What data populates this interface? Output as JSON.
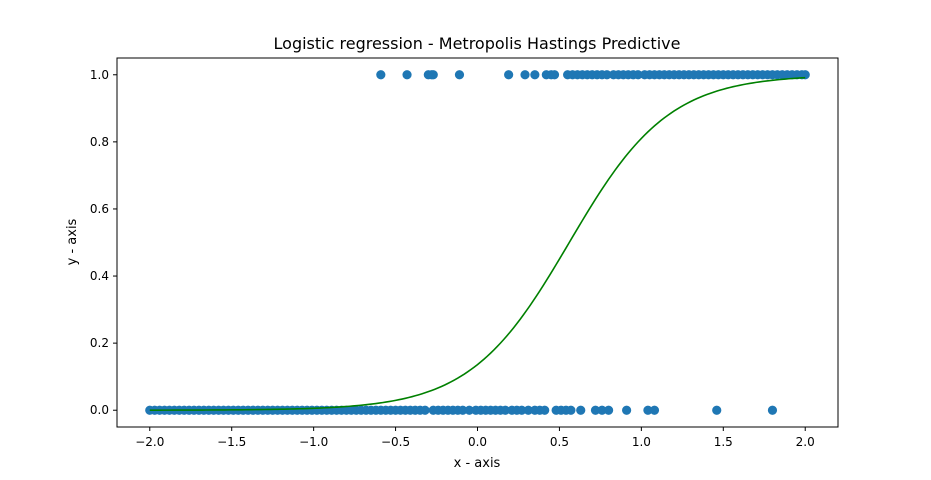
{
  "chart_data": {
    "type": "scatter",
    "title": "Logistic regression - Metropolis Hastings Predictive",
    "xlabel": "x - axis",
    "ylabel": "y - axis",
    "xlim": [
      -2.2,
      2.2
    ],
    "ylim": [
      -0.05,
      1.05
    ],
    "x_ticks": [
      -2.0,
      -1.5,
      -1.0,
      -0.5,
      0.0,
      0.5,
      1.0,
      1.5,
      2.0
    ],
    "x_tick_labels": [
      "−2.0",
      "−1.5",
      "−1.0",
      "−0.5",
      "0.0",
      "0.5",
      "1.0",
      "1.5",
      "2.0"
    ],
    "y_ticks": [
      0.0,
      0.2,
      0.4,
      0.6,
      0.8,
      1.0
    ],
    "y_tick_labels": [
      "0.0",
      "0.2",
      "0.4",
      "0.6",
      "0.8",
      "1.0"
    ],
    "grid": false,
    "colors": {
      "points": "#1f77b4",
      "curve": "#008000"
    },
    "series": [
      {
        "type": "scatter",
        "points_y1_x": [
          -0.59,
          -0.43,
          -0.3,
          -0.28,
          -0.27,
          -0.11,
          0.19,
          0.29,
          0.35,
          0.42,
          0.45,
          0.47,
          0.55,
          0.58,
          0.61,
          0.64,
          0.67,
          0.7,
          0.73,
          0.76,
          0.79,
          0.83,
          0.86,
          0.89,
          0.92,
          0.95,
          0.98,
          1.02,
          1.05,
          1.08,
          1.11,
          1.14,
          1.17,
          1.2,
          1.23,
          1.26,
          1.29,
          1.32,
          1.35,
          1.38,
          1.41,
          1.44,
          1.47,
          1.5,
          1.53,
          1.56,
          1.59,
          1.62,
          1.65,
          1.68,
          1.71,
          1.74,
          1.77,
          1.8,
          1.83,
          1.86,
          1.89,
          1.92,
          1.95,
          1.98,
          2.0
        ],
        "points_y0_x": [
          -2.0,
          -1.97,
          -1.94,
          -1.91,
          -1.88,
          -1.85,
          -1.82,
          -1.79,
          -1.76,
          -1.73,
          -1.7,
          -1.67,
          -1.64,
          -1.61,
          -1.58,
          -1.55,
          -1.52,
          -1.49,
          -1.46,
          -1.43,
          -1.4,
          -1.37,
          -1.34,
          -1.31,
          -1.28,
          -1.25,
          -1.22,
          -1.19,
          -1.16,
          -1.13,
          -1.1,
          -1.07,
          -1.04,
          -1.01,
          -0.98,
          -0.95,
          -0.92,
          -0.89,
          -0.86,
          -0.83,
          -0.8,
          -0.77,
          -0.74,
          -0.71,
          -0.68,
          -0.65,
          -0.62,
          -0.59,
          -0.56,
          -0.53,
          -0.5,
          -0.47,
          -0.44,
          -0.41,
          -0.38,
          -0.35,
          -0.32,
          -0.27,
          -0.24,
          -0.21,
          -0.18,
          -0.15,
          -0.12,
          -0.09,
          -0.05,
          -0.01,
          0.02,
          0.05,
          0.08,
          0.11,
          0.14,
          0.17,
          0.21,
          0.24,
          0.27,
          0.31,
          0.35,
          0.38,
          0.41,
          0.48,
          0.51,
          0.54,
          0.57,
          0.63,
          0.72,
          0.76,
          0.8,
          0.91,
          1.04,
          1.08,
          1.46,
          1.8
        ]
      },
      {
        "type": "line",
        "name": "",
        "curve": {
          "function": "sigmoid",
          "slope": 3.3,
          "center": 0.56,
          "x_from": -2.0,
          "x_to": 2.0
        }
      }
    ]
  }
}
